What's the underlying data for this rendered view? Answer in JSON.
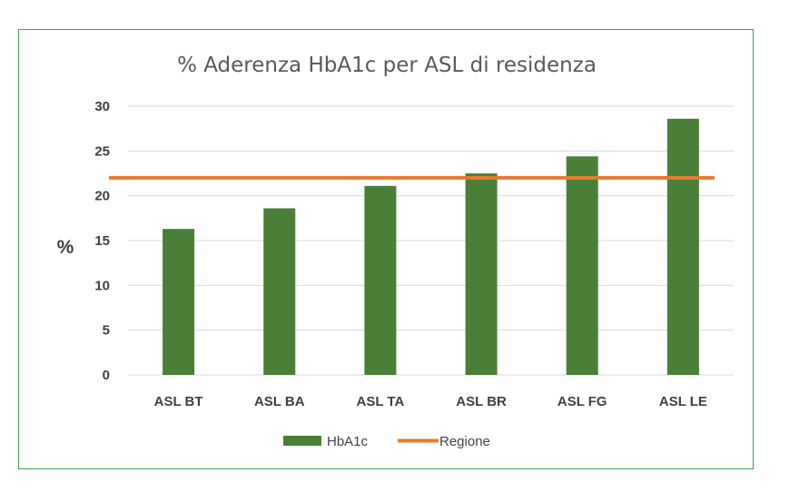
{
  "chart_data": {
    "type": "bar",
    "title": "% Aderenza HbA1c per ASL di residenza",
    "xlabel": "",
    "ylabel": "%",
    "categories": [
      "ASL BT",
      "ASL BA",
      "ASL TA",
      "ASL BR",
      "ASL FG",
      "ASL LE"
    ],
    "series": [
      {
        "name": "HbA1c",
        "type": "bar",
        "values": [
          16.3,
          18.6,
          21.1,
          22.5,
          24.4,
          28.6
        ]
      }
    ],
    "reference_line": {
      "name": "Regione",
      "value": 22.0
    },
    "ylim": [
      0,
      30
    ],
    "yticks": [
      0,
      5,
      10,
      15,
      20,
      25,
      30
    ],
    "grid": true,
    "legend": "bottom",
    "colors": {
      "bar": "#4a7f38",
      "line": "#e97b2c",
      "grid": "#d9d9d9",
      "frame": "#3aa24a"
    }
  }
}
